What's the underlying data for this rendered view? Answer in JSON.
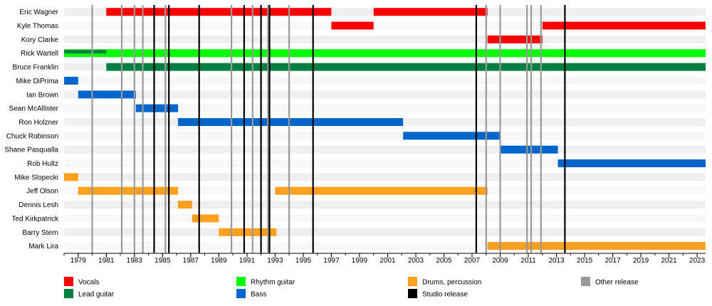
{
  "chart_data": {
    "type": "timeline",
    "title": "",
    "x_range": [
      1978,
      2023.6
    ],
    "x_ticks": [
      1979,
      1981,
      1983,
      1985,
      1987,
      1989,
      1991,
      1993,
      1995,
      1997,
      1999,
      2001,
      2003,
      2005,
      2007,
      2009,
      2011,
      2013,
      2015,
      2017,
      2019,
      2021,
      2023
    ],
    "members": [
      "Eric Wagner",
      "Kyle Thomas",
      "Kory Clarke",
      "Rick Wartell",
      "Bruce Franklin",
      "Mike DiPrima",
      "Ian Brown",
      "Sean McAllister",
      "Ron Holzner",
      "Chuck Robinson",
      "Shane Pasqualla",
      "Rob Hultz",
      "Mike Slopecki",
      "Jeff Olson",
      "Dennis Lesh",
      "Ted Kirkpatrick",
      "Barry Stern",
      "Mark Lira"
    ],
    "roles": {
      "vocals": {
        "label": "Vocals",
        "color": "#ff0000"
      },
      "lead": {
        "label": "Lead guitar",
        "color": "#008040"
      },
      "rhythm": {
        "label": "Rhythm guitar",
        "color": "#00ff00"
      },
      "bass": {
        "label": "Bass",
        "color": "#0066cc"
      },
      "drums": {
        "label": "Drums, percussion",
        "color": "#ff9f20"
      },
      "studio": {
        "label": "Studio release",
        "color": "#000000"
      },
      "other": {
        "label": "Other release",
        "color": "#999999"
      }
    },
    "legend_order": [
      "vocals",
      "lead",
      "rhythm",
      "bass",
      "drums",
      "studio",
      "other"
    ],
    "bars": [
      {
        "member": 0,
        "role": "vocals",
        "start": 1981.0,
        "end": 1997.0
      },
      {
        "member": 0,
        "role": "vocals",
        "start": 2000.0,
        "end": 2008.1
      },
      {
        "member": 1,
        "role": "vocals",
        "start": 1997.0,
        "end": 2000.0
      },
      {
        "member": 1,
        "role": "vocals",
        "start": 2012.0,
        "end": 2023.6
      },
      {
        "member": 2,
        "role": "vocals",
        "start": 2008.1,
        "end": 2012.0
      },
      {
        "member": 3,
        "role": "rhythm",
        "start": 1978.0,
        "end": 2023.6
      },
      {
        "member": 3,
        "role": "lead",
        "start": 1978.0,
        "end": 1981.0,
        "overlay": true
      },
      {
        "member": 4,
        "role": "lead",
        "start": 1981.0,
        "end": 2023.6
      },
      {
        "member": 5,
        "role": "bass",
        "start": 1978.0,
        "end": 1979.0
      },
      {
        "member": 6,
        "role": "bass",
        "start": 1979.0,
        "end": 1983.1
      },
      {
        "member": 7,
        "role": "bass",
        "start": 1983.1,
        "end": 1986.1
      },
      {
        "member": 8,
        "role": "bass",
        "start": 1986.1,
        "end": 2002.1
      },
      {
        "member": 9,
        "role": "bass",
        "start": 2002.1,
        "end": 2009.0
      },
      {
        "member": 10,
        "role": "bass",
        "start": 2009.0,
        "end": 2013.1
      },
      {
        "member": 11,
        "role": "bass",
        "start": 2013.1,
        "end": 2023.6
      },
      {
        "member": 12,
        "role": "drums",
        "start": 1978.0,
        "end": 1979.0
      },
      {
        "member": 13,
        "role": "drums",
        "start": 1979.0,
        "end": 1986.1
      },
      {
        "member": 13,
        "role": "drums",
        "start": 1993.0,
        "end": 2008.1
      },
      {
        "member": 14,
        "role": "drums",
        "start": 1986.1,
        "end": 1987.1
      },
      {
        "member": 15,
        "role": "drums",
        "start": 1987.1,
        "end": 1989.0
      },
      {
        "member": 16,
        "role": "drums",
        "start": 1989.0,
        "end": 1993.1
      },
      {
        "member": 17,
        "role": "drums",
        "start": 2008.1,
        "end": 2023.6
      }
    ],
    "releases": [
      {
        "year": 1980.0,
        "type": "other"
      },
      {
        "year": 1982.1,
        "type": "other"
      },
      {
        "year": 1983.0,
        "type": "other"
      },
      {
        "year": 1983.6,
        "type": "other"
      },
      {
        "year": 1984.4,
        "type": "studio"
      },
      {
        "year": 1985.2,
        "type": "other"
      },
      {
        "year": 1985.45,
        "type": "studio"
      },
      {
        "year": 1987.6,
        "type": "studio"
      },
      {
        "year": 1989.9,
        "type": "other"
      },
      {
        "year": 1990.8,
        "type": "studio"
      },
      {
        "year": 1991.4,
        "type": "other"
      },
      {
        "year": 1992.0,
        "type": "studio"
      },
      {
        "year": 1992.5,
        "type": "other"
      },
      {
        "year": 1992.6,
        "type": "studio"
      },
      {
        "year": 1994.0,
        "type": "other"
      },
      {
        "year": 1995.7,
        "type": "studio"
      },
      {
        "year": 2007.3,
        "type": "studio"
      },
      {
        "year": 2008.0,
        "type": "other"
      },
      {
        "year": 2009.0,
        "type": "other"
      },
      {
        "year": 2010.9,
        "type": "other"
      },
      {
        "year": 2011.2,
        "type": "other"
      },
      {
        "year": 2011.9,
        "type": "other"
      },
      {
        "year": 2013.6,
        "type": "studio"
      }
    ]
  }
}
